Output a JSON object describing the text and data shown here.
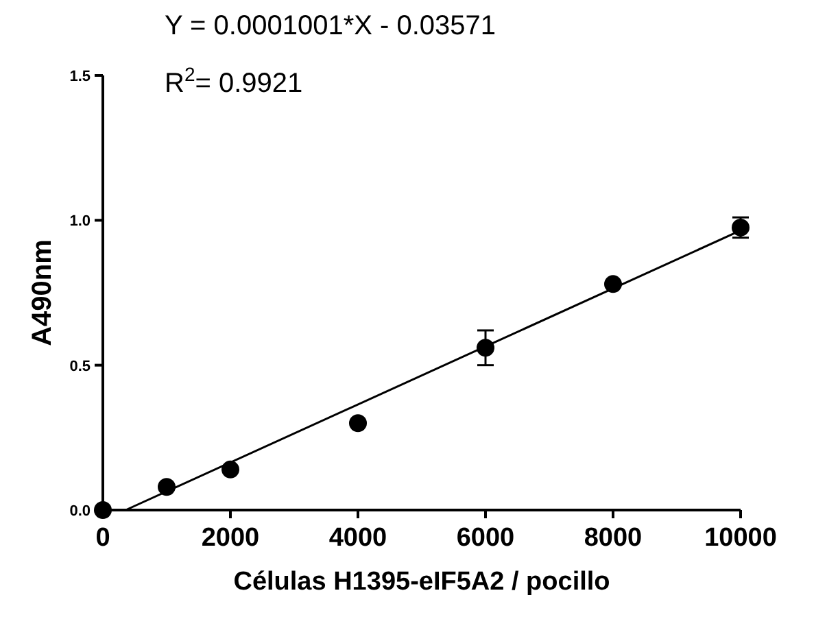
{
  "chart_data": {
    "type": "scatter",
    "xlabel": "Células H1395-eIF5A2 / pocillo",
    "ylabel": "A490nm",
    "annotations": [
      "Y = 0.0001001*X - 0.03571",
      "R$^{2}$= 0.9921"
    ],
    "xlim": [
      0,
      10000
    ],
    "xticks": [
      0,
      2000,
      4000,
      6000,
      8000,
      10000
    ],
    "ylim": [
      0,
      1.5
    ],
    "yticks": [
      {
        "value": 0,
        "label": "0.0"
      },
      0.5,
      {
        "value": 1,
        "label": "1.0"
      },
      1.5
    ],
    "grid": false,
    "series": [
      {
        "marker": "circle",
        "color": "#000000",
        "x": [
          0,
          1000,
          2000,
          4000,
          6000,
          8000,
          10000
        ],
        "values": [
          0,
          0.08,
          0.14,
          0.3,
          0.56,
          0.78,
          0.975
        ],
        "errors": [
          null,
          null,
          null,
          null,
          0.06,
          null,
          0.035
        ]
      },
      {
        "type": "line",
        "color": "#000000",
        "line_style": "solid",
        "x": [
          357,
          10000
        ],
        "values": [
          0,
          0.965
        ]
      }
    ]
  }
}
